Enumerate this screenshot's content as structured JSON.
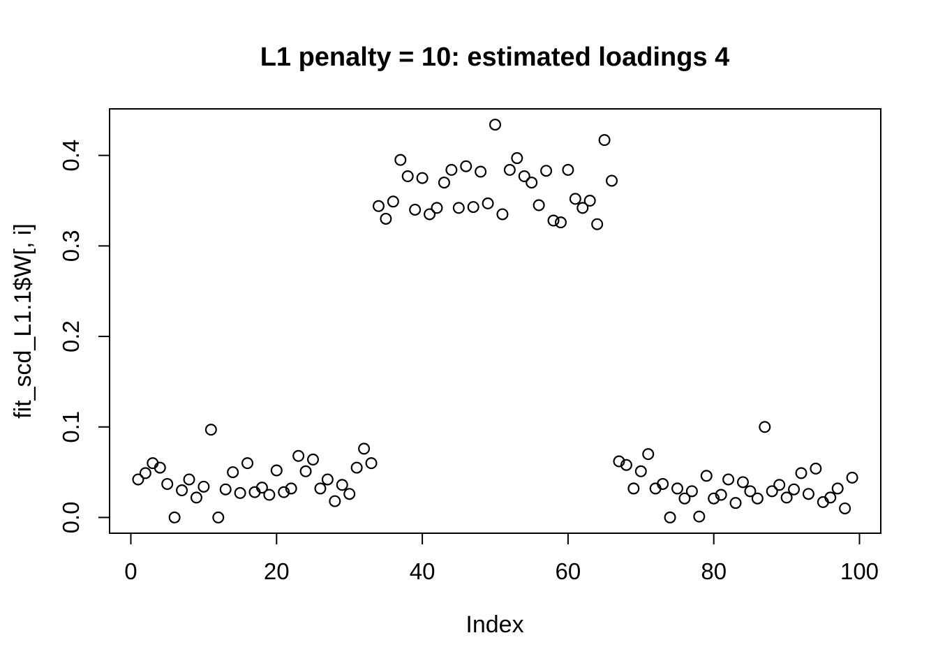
{
  "chart_data": {
    "type": "scatter",
    "title": "L1 penalty = 10: estimated loadings 4",
    "xlabel": "Index",
    "ylabel": "fit_scd_L1.1$W[, i]",
    "x_tick_labels": [
      "0",
      "20",
      "40",
      "60",
      "80",
      "100"
    ],
    "x_tick_values": [
      0,
      20,
      40,
      60,
      80,
      100
    ],
    "y_tick_labels": [
      "0.0",
      "0.1",
      "0.2",
      "0.3",
      "0.4"
    ],
    "y_tick_values": [
      0,
      0.1,
      0.2,
      0.3,
      0.4
    ],
    "xlim": [
      -2.92,
      102.92
    ],
    "ylim": [
      -0.0174,
      0.4514
    ],
    "grid": false,
    "legend": null,
    "marker": {
      "shape": "open-circle",
      "color": "#000000"
    },
    "x_start": 1,
    "values": [
      0.042,
      0.049,
      0.06,
      0.055,
      0.037,
      0.0,
      0.03,
      0.042,
      0.022,
      0.034,
      0.097,
      0.0,
      0.031,
      0.05,
      0.027,
      0.06,
      0.028,
      0.033,
      0.025,
      0.052,
      0.028,
      0.032,
      0.068,
      0.051,
      0.064,
      0.032,
      0.042,
      0.018,
      0.036,
      0.026,
      0.055,
      0.076,
      0.06,
      0.344,
      0.33,
      0.349,
      0.395,
      0.377,
      0.34,
      0.375,
      0.335,
      0.342,
      0.37,
      0.384,
      0.342,
      0.388,
      0.343,
      0.382,
      0.347,
      0.434,
      0.335,
      0.384,
      0.397,
      0.377,
      0.37,
      0.345,
      0.383,
      0.328,
      0.326,
      0.384,
      0.352,
      0.342,
      0.35,
      0.324,
      0.417,
      0.372,
      0.062,
      0.058,
      0.032,
      0.051,
      0.07,
      0.032,
      0.037,
      0.0,
      0.032,
      0.021,
      0.029,
      0.001,
      0.046,
      0.021,
      0.025,
      0.042,
      0.016,
      0.039,
      0.029,
      0.021,
      0.1,
      0.029,
      0.036,
      0.022,
      0.031,
      0.049,
      0.026,
      0.054,
      0.017,
      0.022,
      0.032,
      0.01,
      0.044
    ]
  }
}
